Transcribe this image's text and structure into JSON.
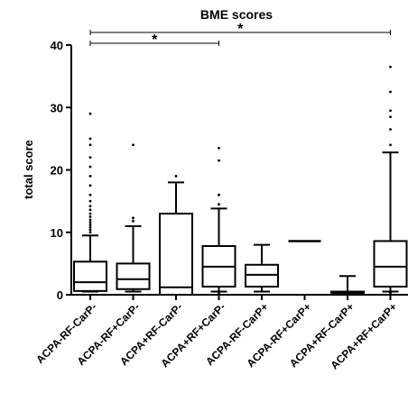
{
  "chart_data": {
    "type": "box",
    "title": "BME scores",
    "ylabel": "total score",
    "xlabel": "",
    "ylim": [
      0,
      40
    ],
    "yticks": [
      0,
      10,
      20,
      30,
      40
    ],
    "grid": false,
    "categories": [
      "ACPA-RF-CarP-",
      "ACPA-RF+CarP-",
      "ACPA+RF-CarP-",
      "ACPA+RF+CarP-",
      "ACPA-RF-CarP+",
      "ACPA-RF+CarP+",
      "ACPA+RF-CarP+",
      "ACPA+RF+CarP+"
    ],
    "boxes": [
      {
        "whisker_low": 0.5,
        "q1": 0.6,
        "median": 2.0,
        "q3": 5.3,
        "whisker_high": 9.5,
        "outliers": [
          10,
          10.4,
          10.8,
          11.2,
          11.6,
          12.0,
          12.5,
          13.0,
          13.6,
          14.2,
          15.0,
          16.0,
          17.5,
          19.0,
          20.5,
          22.0,
          24.0,
          25.0,
          29.0
        ]
      },
      {
        "whisker_low": 0.5,
        "q1": 0.9,
        "median": 2.5,
        "q3": 5.0,
        "whisker_high": 11.0,
        "outliers": [
          11.8,
          12.3,
          24.0
        ]
      },
      {
        "whisker_low": 0,
        "q1": 0,
        "median": 1.2,
        "q3": 13.0,
        "whisker_high": 18.0,
        "outliers": [
          19.0
        ]
      },
      {
        "whisker_low": 0.5,
        "q1": 1.3,
        "median": 4.5,
        "q3": 7.8,
        "whisker_high": 13.8,
        "outliers": [
          14.5,
          16.0,
          21.5,
          23.5,
          0.3
        ]
      },
      {
        "whisker_low": 0.5,
        "q1": 1.3,
        "median": 3.2,
        "q3": 4.8,
        "whisker_high": 8.0,
        "outliers": []
      },
      {
        "whisker_low": 8.6,
        "q1": 8.6,
        "median": 8.6,
        "q3": 8.6,
        "whisker_high": 8.6,
        "outliers": []
      },
      {
        "whisker_low": 0,
        "q1": 0.3,
        "median": 0.4,
        "q3": 0.5,
        "whisker_high": 3.0,
        "outliers": []
      },
      {
        "whisker_low": 0.5,
        "q1": 1.3,
        "median": 4.5,
        "q3": 8.6,
        "whisker_high": 22.8,
        "outliers": [
          24.0,
          26.5,
          28.5,
          29.5,
          32.5,
          36.5,
          0.3
        ]
      }
    ],
    "significance": [
      {
        "from": 0,
        "to": 3,
        "label": "*"
      },
      {
        "from": 0,
        "to": 7,
        "label": "*"
      }
    ]
  }
}
